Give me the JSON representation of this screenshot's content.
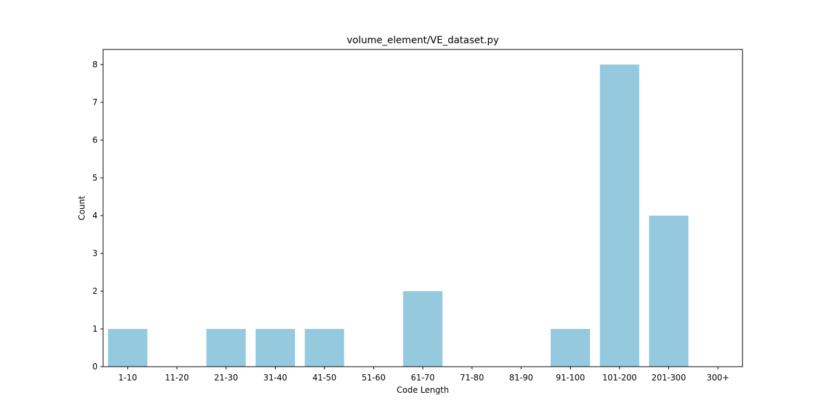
{
  "chart_data": {
    "type": "bar",
    "title": "volume_element/VE_dataset.py",
    "xlabel": "Code Length",
    "ylabel": "Count",
    "categories": [
      "1-10",
      "11-20",
      "21-30",
      "31-40",
      "41-50",
      "51-60",
      "61-70",
      "71-80",
      "81-90",
      "91-100",
      "101-200",
      "201-300",
      "300+"
    ],
    "values": [
      1,
      0,
      1,
      1,
      1,
      0,
      2,
      0,
      0,
      1,
      8,
      4,
      0
    ],
    "ylim": [
      0,
      8.4
    ],
    "yticks": [
      0,
      1,
      2,
      3,
      4,
      5,
      6,
      7,
      8
    ],
    "bar_color": "#94c9de",
    "grid": false
  }
}
